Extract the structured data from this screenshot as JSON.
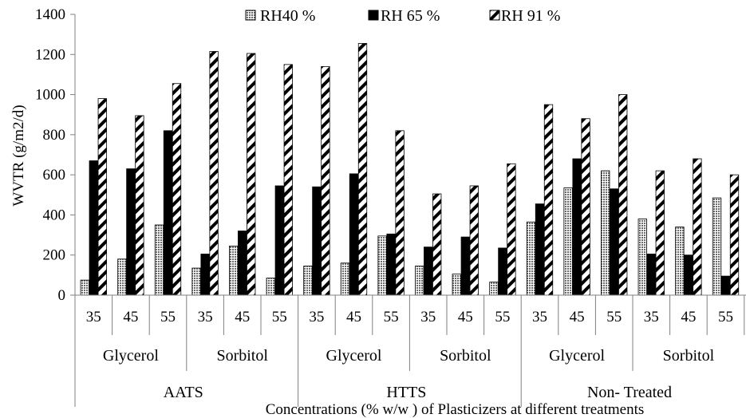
{
  "chart_data": {
    "type": "bar",
    "title": "",
    "xlabel": "Concentrations (% w/w ) of Plasticizers at different treatments",
    "ylabel": "WVTR (g/m2/d)",
    "ylim": [
      0,
      1400
    ],
    "yticks": [
      0,
      200,
      400,
      600,
      800,
      1000,
      1200,
      1400
    ],
    "grid": false,
    "legend_position": "top",
    "categories": [
      "35",
      "45",
      "55",
      "35",
      "45",
      "55",
      "35",
      "45",
      "55",
      "35",
      "45",
      "55",
      "35",
      "45",
      "55",
      "35",
      "45",
      "55"
    ],
    "plasticizer_groups": [
      {
        "label": "Glycerol",
        "start": 0,
        "count": 3
      },
      {
        "label": "Sorbitol",
        "start": 3,
        "count": 3
      },
      {
        "label": "Glycerol",
        "start": 6,
        "count": 3
      },
      {
        "label": "Sorbitol",
        "start": 9,
        "count": 3
      },
      {
        "label": "Glycerol",
        "start": 12,
        "count": 3
      },
      {
        "label": "Sorbitol",
        "start": 15,
        "count": 3
      }
    ],
    "treatment_groups": [
      {
        "label": "AATS",
        "start": 0,
        "count": 6
      },
      {
        "label": "HTTS",
        "start": 6,
        "count": 6
      },
      {
        "label": "Non- Treated",
        "start": 12,
        "count": 6
      }
    ],
    "series": [
      {
        "name": "RH40 %",
        "pattern": "grid",
        "values": [
          75,
          180,
          350,
          135,
          245,
          85,
          145,
          160,
          295,
          145,
          105,
          65,
          365,
          535,
          620,
          380,
          340,
          485
        ]
      },
      {
        "name": "RH 65 %",
        "pattern": "solid",
        "values": [
          670,
          630,
          820,
          205,
          320,
          545,
          540,
          605,
          305,
          240,
          290,
          235,
          455,
          680,
          530,
          205,
          200,
          95
        ]
      },
      {
        "name": "RH 91 %",
        "pattern": "diagonal",
        "values": [
          980,
          895,
          1055,
          1215,
          1205,
          1150,
          1140,
          1255,
          820,
          505,
          545,
          655,
          950,
          880,
          1000,
          620,
          680,
          600
        ]
      }
    ]
  }
}
